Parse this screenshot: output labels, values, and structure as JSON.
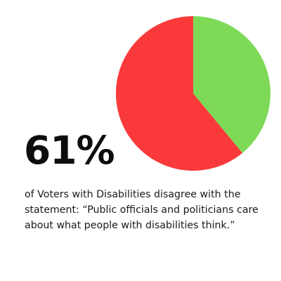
{
  "chart_data": {
    "type": "pie",
    "slices": [
      {
        "value": 61,
        "color": "#fa3a3a"
      },
      {
        "value": 39,
        "color": "#7ed957"
      }
    ]
  },
  "headline": {
    "value": "61%"
  },
  "caption": {
    "text": "of Voters with Disabilities disagree with the statement: “Public officials and politicians care about what people with disabilities think.”"
  }
}
